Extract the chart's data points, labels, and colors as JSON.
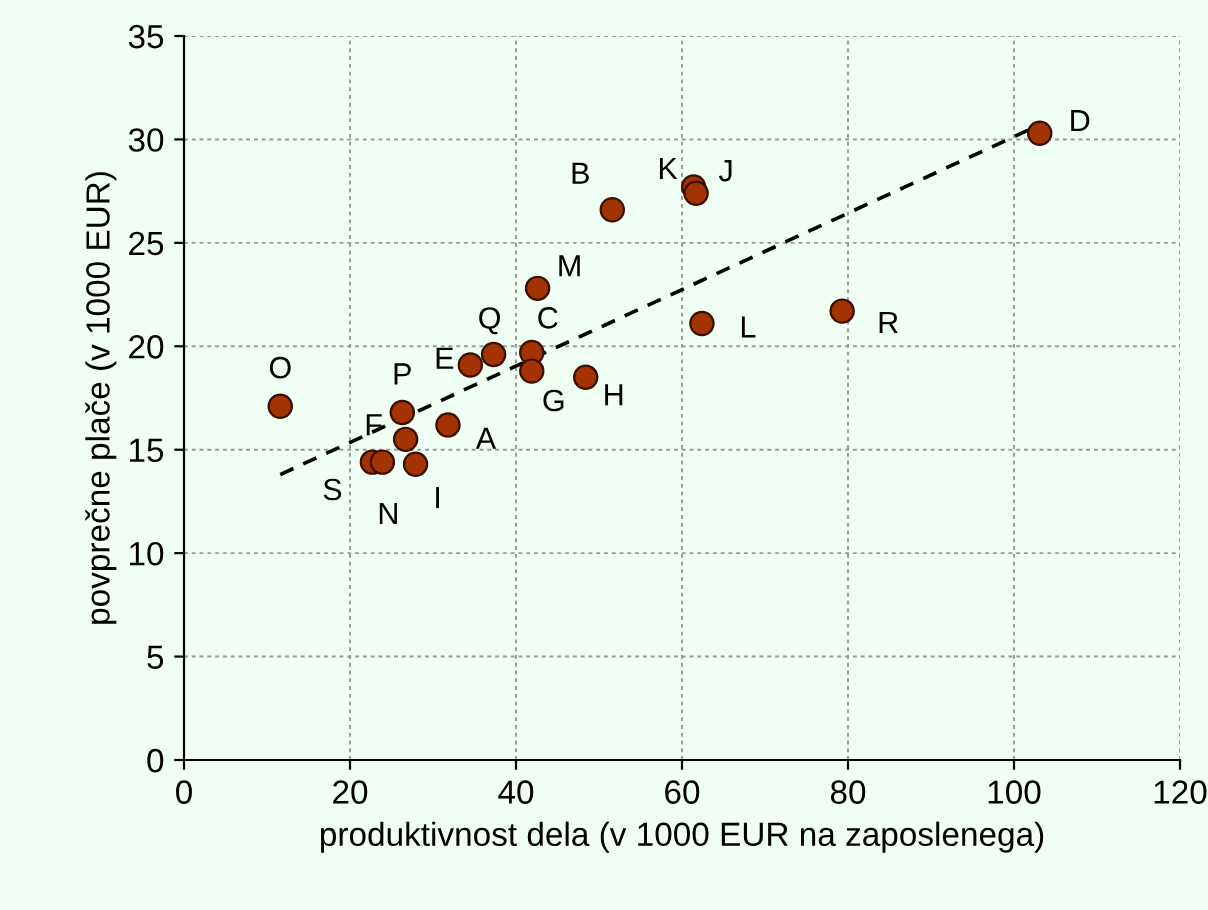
{
  "chart_data": {
    "type": "scatter",
    "xlabel": "produktivnost dela (v 1000 EUR na zaposlenega)",
    "ylabel": "povprečne plače (v 1000 EUR)",
    "series": [
      {
        "color": "#a33300",
        "marker": "circle",
        "x": [
          11.6,
          26.3,
          26.7,
          31.8,
          22.7,
          23.9,
          27.9,
          34.5,
          37.3,
          41.9,
          41.9,
          48.4,
          42.6,
          51.6,
          61.4,
          61.7,
          62.4,
          79.3,
          103.1
        ],
        "values": [
          17.1,
          16.8,
          15.5,
          16.2,
          14.4,
          14.4,
          14.3,
          19.1,
          19.6,
          19.7,
          18.8,
          18.5,
          22.8,
          26.6,
          27.7,
          27.4,
          21.1,
          21.7,
          30.3
        ]
      },
      {
        "type": "line",
        "color": "#000000",
        "line_style": "dashed",
        "marker": "none",
        "x": [
          11.6,
          102
        ],
        "values": [
          13.8,
          30.5
        ]
      }
    ],
    "annotations": [
      {
        "text": "O",
        "x": 11.6,
        "y": 17.1
      },
      {
        "text": "P",
        "x": 26.3,
        "y": 16.8
      },
      {
        "text": "F",
        "x": 26.7,
        "y": 15.5
      },
      {
        "text": "A",
        "x": 31.8,
        "y": 16.2
      },
      {
        "text": "S",
        "x": 22.7,
        "y": 14.4
      },
      {
        "text": "N",
        "x": 23.9,
        "y": 14.4
      },
      {
        "text": "I",
        "x": 27.9,
        "y": 14.3
      },
      {
        "text": "E",
        "x": 34.5,
        "y": 19.1
      },
      {
        "text": "Q",
        "x": 37.3,
        "y": 19.6
      },
      {
        "text": "C",
        "x": 41.9,
        "y": 19.7
      },
      {
        "text": "G",
        "x": 41.9,
        "y": 18.8
      },
      {
        "text": "H",
        "x": 48.4,
        "y": 18.5
      },
      {
        "text": "M",
        "x": 42.6,
        "y": 22.8
      },
      {
        "text": "B",
        "x": 51.6,
        "y": 26.6
      },
      {
        "text": "K",
        "x": 61.4,
        "y": 27.7
      },
      {
        "text": "J",
        "x": 61.7,
        "y": 27.4
      },
      {
        "text": "L",
        "x": 62.4,
        "y": 21.1
      },
      {
        "text": "R",
        "x": 79.3,
        "y": 21.7
      },
      {
        "text": "D",
        "x": 103.1,
        "y": 30.3
      }
    ],
    "xlim": [
      0,
      120
    ],
    "xticks": [
      0,
      20,
      40,
      60,
      80,
      100,
      120
    ],
    "ylim": [
      0,
      35
    ],
    "yticks": [
      0,
      5,
      10,
      15,
      20,
      25,
      30,
      35
    ],
    "grid": true,
    "legend": false
  }
}
